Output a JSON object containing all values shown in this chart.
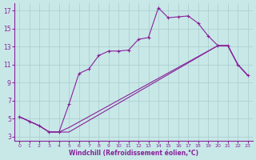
{
  "xlabel": "Windchill (Refroidissement éolien,°C)",
  "background_color": "#c8e8e8",
  "grid_color": "#a8cccc",
  "line_color": "#882299",
  "xlim_min": -0.5,
  "xlim_max": 23.5,
  "ylim_min": 2.5,
  "ylim_max": 17.8,
  "xticks": [
    0,
    1,
    2,
    3,
    4,
    5,
    6,
    7,
    8,
    9,
    10,
    11,
    12,
    13,
    14,
    15,
    16,
    17,
    18,
    19,
    20,
    21,
    22,
    23
  ],
  "yticks": [
    3,
    5,
    7,
    9,
    11,
    13,
    15,
    17
  ],
  "line1_x": [
    0,
    1,
    2,
    3,
    4,
    5,
    6,
    7,
    8,
    9,
    10,
    11,
    12,
    13,
    14,
    15,
    16,
    17,
    18,
    19,
    20,
    21,
    22,
    23
  ],
  "line1_y": [
    5.2,
    4.7,
    4.2,
    3.5,
    3.5,
    6.6,
    10.0,
    10.5,
    12.0,
    12.5,
    12.5,
    12.6,
    13.8,
    14.0,
    17.3,
    16.2,
    16.3,
    16.4,
    15.6,
    14.2,
    13.1,
    13.1,
    11.0,
    9.8
  ],
  "line2_x": [
    0,
    2,
    3,
    4,
    5,
    20,
    21,
    22,
    23
  ],
  "line2_y": [
    5.2,
    4.2,
    3.5,
    3.5,
    3.5,
    13.1,
    13.1,
    11.0,
    9.8
  ],
  "line3_x": [
    0,
    2,
    3,
    4,
    5,
    20,
    21,
    22,
    23
  ],
  "line3_y": [
    5.2,
    4.2,
    3.5,
    3.5,
    4.0,
    13.1,
    13.1,
    11.0,
    9.8
  ]
}
